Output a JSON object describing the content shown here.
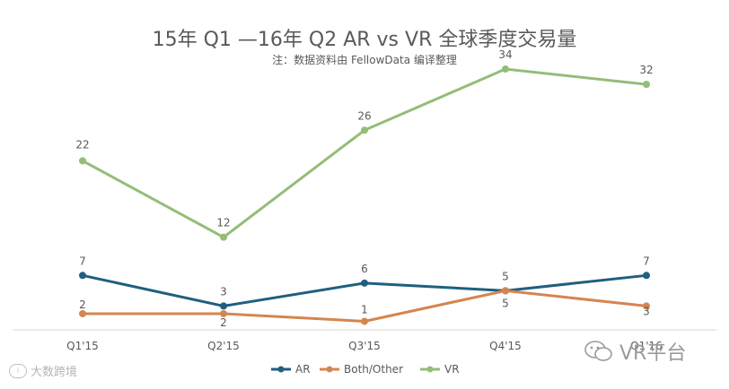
{
  "chart_data": {
    "type": "line",
    "title": "15年 Q1 —16年 Q2 AR vs VR 全球季度交易量",
    "subtitle": "注：数据资料由 FellowData 编译整理",
    "categories": [
      "Q1'15",
      "Q2'15",
      "Q3'15",
      "Q4'15",
      "Q1'16"
    ],
    "series": [
      {
        "name": "AR",
        "values": [
          7,
          3,
          6,
          5,
          7
        ],
        "color": "#1f5f7f"
      },
      {
        "name": "Both/Other",
        "values": [
          2,
          2,
          1,
          5,
          3
        ],
        "color": "#d4864f"
      },
      {
        "name": "VR",
        "values": [
          22,
          12,
          26,
          34,
          32
        ],
        "color": "#93bd78"
      }
    ],
    "ylim": [
      0,
      36
    ],
    "grid": false,
    "legend": "bottom-center",
    "xlabel": "",
    "ylabel": ""
  },
  "watermarks": {
    "left_text": "大数跨境",
    "right_text": "VR平台",
    "left_icon": "brand-badge-icon",
    "right_icon": "wechat-icon"
  }
}
